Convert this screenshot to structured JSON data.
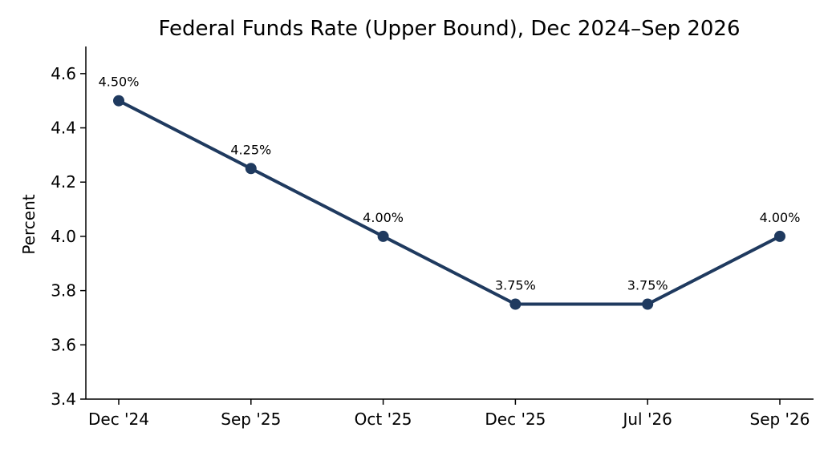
{
  "chart_data": {
    "type": "line",
    "title": "Federal Funds Rate (Upper Bound), Dec 2024–Sep 2026",
    "xlabel": "",
    "ylabel": "Percent",
    "categories": [
      "Dec '24",
      "Sep '25",
      "Oct '25",
      "Dec '25",
      "Jul '26",
      "Sep '26"
    ],
    "series": [
      {
        "values": [
          4.5,
          4.25,
          4.0,
          3.75,
          3.75,
          4.0
        ],
        "data_labels": [
          "4.50%",
          "4.25%",
          "4.00%",
          "3.75%",
          "3.75%",
          "4.00%"
        ],
        "color": "#1f3a5f"
      }
    ],
    "ylim": [
      3.4,
      4.7
    ],
    "yticks": [
      3.4,
      3.6,
      3.8,
      4.0,
      4.2,
      4.4,
      4.6
    ],
    "ytick_labels": [
      "3.4",
      "3.6",
      "3.8",
      "4.0",
      "4.2",
      "4.4",
      "4.6"
    ],
    "grid": false,
    "legend": "none"
  }
}
